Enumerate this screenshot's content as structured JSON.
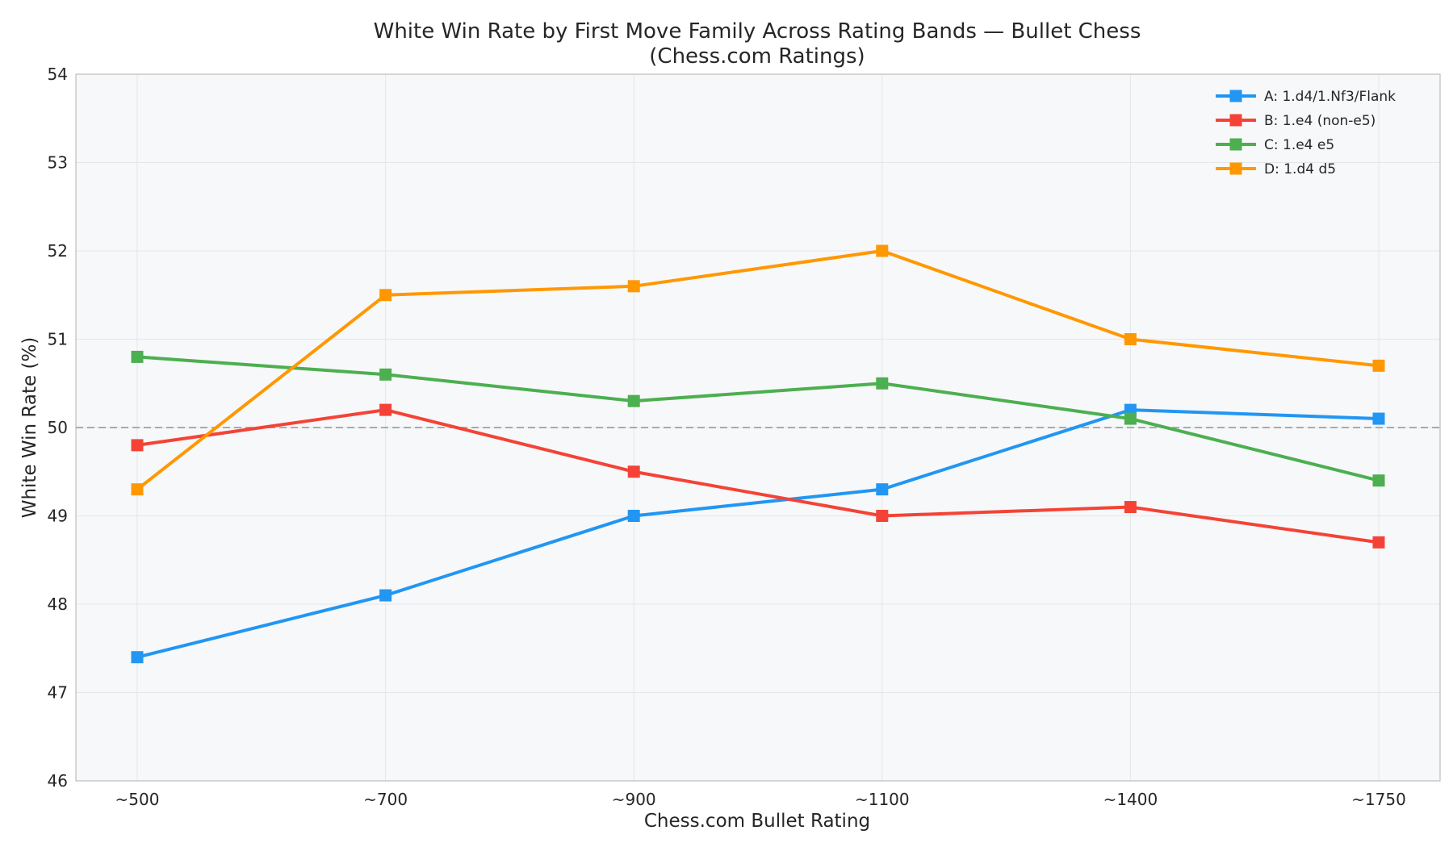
{
  "chart_data": {
    "type": "line",
    "title": "White Win Rate by First Move Family Across Rating Bands — Bullet Chess",
    "subtitle": "(Chess.com Ratings)",
    "xlabel": "Chess.com Bullet Rating",
    "ylabel": "White Win Rate (%)",
    "categories": [
      "~500",
      "~700",
      "~900",
      "~1100",
      "~1400",
      "~1750"
    ],
    "ylim": [
      46,
      54
    ],
    "yticks": [
      "46",
      "47",
      "48",
      "49",
      "50",
      "51",
      "52",
      "53",
      "54"
    ],
    "reference_line": 50,
    "grid": true,
    "legend_position": "top-right",
    "marker": "square",
    "series": [
      {
        "name": "A: 1.d4/1.Nf3/Flank",
        "color": "#2196F3",
        "values": [
          47.4,
          48.1,
          49.0,
          49.3,
          50.2,
          50.1
        ]
      },
      {
        "name": "B: 1.e4 (non-e5)",
        "color": "#F44336",
        "values": [
          49.8,
          50.2,
          49.5,
          49.0,
          49.1,
          48.7
        ]
      },
      {
        "name": "C: 1.e4 e5",
        "color": "#4CAF50",
        "values": [
          50.8,
          50.6,
          50.3,
          50.5,
          50.1,
          49.4
        ]
      },
      {
        "name": "D: 1.d4 d5",
        "color": "#FF9800",
        "values": [
          49.3,
          51.5,
          51.6,
          52.0,
          51.0,
          50.7
        ]
      }
    ]
  }
}
